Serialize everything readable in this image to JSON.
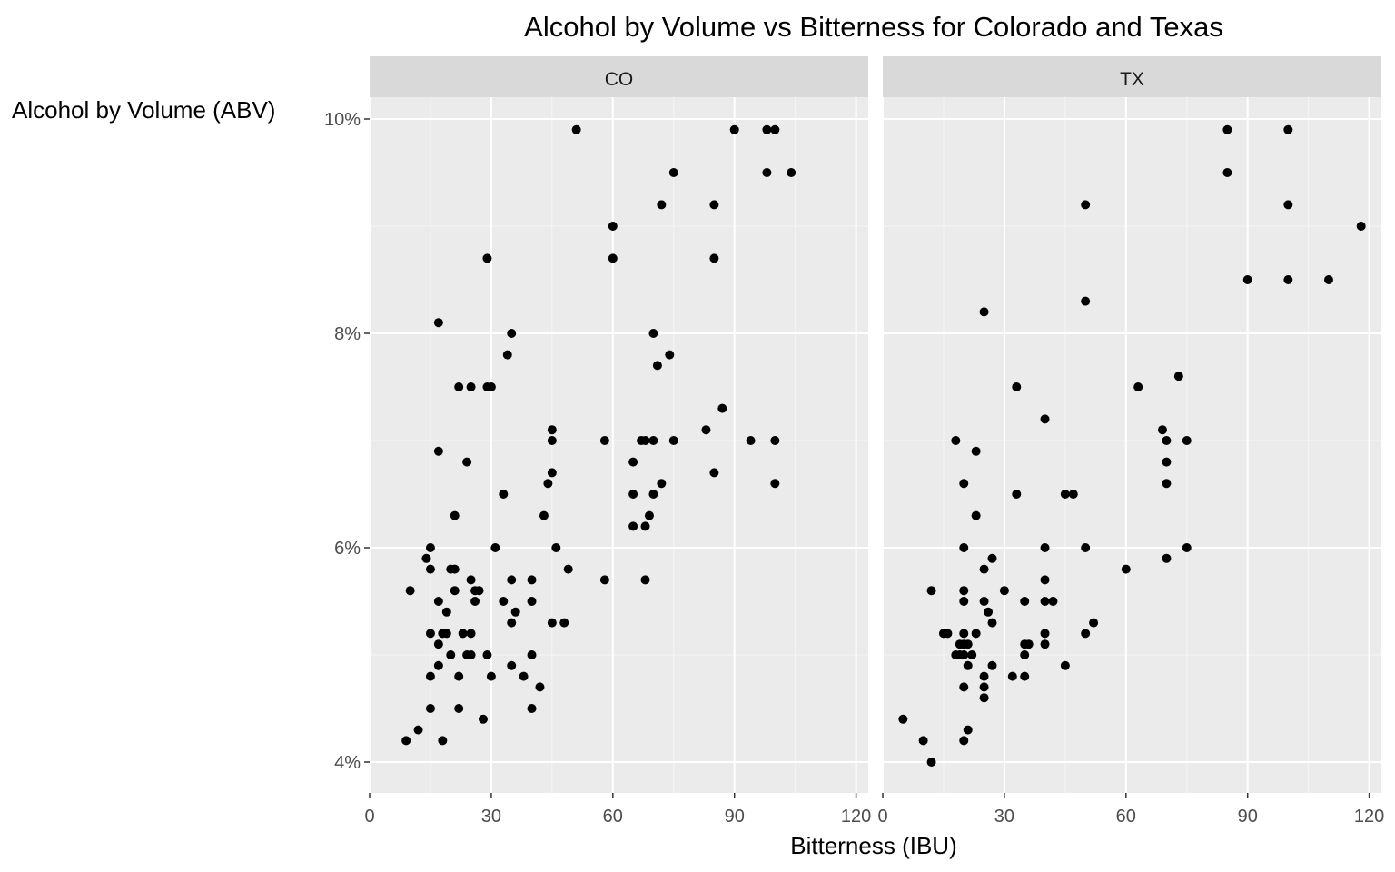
{
  "chart_data": {
    "type": "scatter",
    "title": "Alcohol by Volume vs Bitterness for Colorado and Texas",
    "xlabel": "Bitterness (IBU)",
    "ylabel": "Alcohol by Volume (ABV)",
    "xlim": [
      0,
      123
    ],
    "ylim": [
      3.75,
      10.3
    ],
    "x_ticks": [
      0,
      30,
      60,
      90,
      120
    ],
    "x_tick_labels": [
      "0",
      "30",
      "60",
      "90",
      "120"
    ],
    "y_ticks": [
      4,
      6,
      8,
      10
    ],
    "y_tick_labels": [
      "4%",
      "6%",
      "8%",
      "10%"
    ],
    "grid": true,
    "facets": [
      {
        "label": "CO",
        "points": [
          [
            9,
            4.2
          ],
          [
            12,
            4.3
          ],
          [
            18,
            4.2
          ],
          [
            15,
            4.5
          ],
          [
            22,
            4.5
          ],
          [
            28,
            4.4
          ],
          [
            40,
            4.5
          ],
          [
            15,
            4.8
          ],
          [
            17,
            4.9
          ],
          [
            22,
            4.8
          ],
          [
            30,
            4.8
          ],
          [
            35,
            4.9
          ],
          [
            38,
            4.8
          ],
          [
            42,
            4.7
          ],
          [
            20,
            5.0
          ],
          [
            24,
            5.0
          ],
          [
            25,
            5.0
          ],
          [
            29,
            5.0
          ],
          [
            40,
            5.0
          ],
          [
            17,
            5.1
          ],
          [
            15,
            5.2
          ],
          [
            18,
            5.2
          ],
          [
            19,
            5.2
          ],
          [
            23,
            5.2
          ],
          [
            25,
            5.2
          ],
          [
            35,
            5.3
          ],
          [
            45,
            5.3
          ],
          [
            48,
            5.3
          ],
          [
            19,
            5.4
          ],
          [
            36,
            5.4
          ],
          [
            10,
            5.6
          ],
          [
            17,
            5.5
          ],
          [
            26,
            5.5
          ],
          [
            33,
            5.5
          ],
          [
            40,
            5.5
          ],
          [
            21,
            5.6
          ],
          [
            26,
            5.6
          ],
          [
            27,
            5.6
          ],
          [
            25,
            5.7
          ],
          [
            35,
            5.7
          ],
          [
            40,
            5.7
          ],
          [
            58,
            5.7
          ],
          [
            68,
            5.7
          ],
          [
            15,
            5.8
          ],
          [
            20,
            5.8
          ],
          [
            21,
            5.8
          ],
          [
            49,
            5.8
          ],
          [
            14,
            5.9
          ],
          [
            15,
            6.0
          ],
          [
            31,
            6.0
          ],
          [
            46,
            6.0
          ],
          [
            21,
            6.3
          ],
          [
            43,
            6.3
          ],
          [
            65,
            6.2
          ],
          [
            68,
            6.2
          ],
          [
            69,
            6.3
          ],
          [
            33,
            6.5
          ],
          [
            44,
            6.6
          ],
          [
            45,
            6.7
          ],
          [
            65,
            6.5
          ],
          [
            65,
            6.8
          ],
          [
            70,
            6.5
          ],
          [
            72,
            6.6
          ],
          [
            85,
            6.7
          ],
          [
            100,
            6.6
          ],
          [
            17,
            6.9
          ],
          [
            24,
            6.8
          ],
          [
            45,
            7.0
          ],
          [
            45,
            7.1
          ],
          [
            58,
            7.0
          ],
          [
            67,
            7.0
          ],
          [
            68,
            7.0
          ],
          [
            70,
            7.0
          ],
          [
            75,
            7.0
          ],
          [
            83,
            7.1
          ],
          [
            87,
            7.3
          ],
          [
            94,
            7.0
          ],
          [
            100,
            7.0
          ],
          [
            22,
            7.5
          ],
          [
            25,
            7.5
          ],
          [
            29,
            7.5
          ],
          [
            30,
            7.5
          ],
          [
            34,
            7.8
          ],
          [
            35,
            8.0
          ],
          [
            70,
            8.0
          ],
          [
            71,
            7.7
          ],
          [
            74,
            7.8
          ],
          [
            17,
            8.1
          ],
          [
            29,
            8.7
          ],
          [
            60,
            8.7
          ],
          [
            85,
            8.7
          ],
          [
            60,
            9.0
          ],
          [
            72,
            9.2
          ],
          [
            85,
            9.2
          ],
          [
            75,
            9.5
          ],
          [
            98,
            9.5
          ],
          [
            104,
            9.5
          ],
          [
            51,
            9.9
          ],
          [
            90,
            9.9
          ],
          [
            98,
            9.9
          ],
          [
            100,
            9.9
          ]
        ]
      },
      {
        "label": "TX",
        "points": [
          [
            5,
            4.4
          ],
          [
            10,
            4.2
          ],
          [
            12,
            4.0
          ],
          [
            20,
            4.2
          ],
          [
            21,
            4.3
          ],
          [
            20,
            4.7
          ],
          [
            25,
            4.6
          ],
          [
            25,
            4.7
          ],
          [
            21,
            4.9
          ],
          [
            25,
            4.8
          ],
          [
            27,
            4.9
          ],
          [
            32,
            4.8
          ],
          [
            35,
            4.8
          ],
          [
            45,
            4.9
          ],
          [
            18,
            5.0
          ],
          [
            19,
            5.0
          ],
          [
            20,
            5.0
          ],
          [
            22,
            5.0
          ],
          [
            35,
            5.0
          ],
          [
            19,
            5.1
          ],
          [
            20,
            5.1
          ],
          [
            21,
            5.1
          ],
          [
            35,
            5.1
          ],
          [
            36,
            5.1
          ],
          [
            40,
            5.1
          ],
          [
            15,
            5.2
          ],
          [
            16,
            5.2
          ],
          [
            20,
            5.2
          ],
          [
            23,
            5.2
          ],
          [
            40,
            5.2
          ],
          [
            50,
            5.2
          ],
          [
            27,
            5.3
          ],
          [
            52,
            5.3
          ],
          [
            26,
            5.4
          ],
          [
            12,
            5.6
          ],
          [
            20,
            5.5
          ],
          [
            20,
            5.6
          ],
          [
            25,
            5.5
          ],
          [
            30,
            5.6
          ],
          [
            35,
            5.5
          ],
          [
            40,
            5.5
          ],
          [
            42,
            5.5
          ],
          [
            40,
            5.7
          ],
          [
            25,
            5.8
          ],
          [
            27,
            5.9
          ],
          [
            60,
            5.8
          ],
          [
            70,
            5.9
          ],
          [
            20,
            6.0
          ],
          [
            40,
            6.0
          ],
          [
            50,
            6.0
          ],
          [
            75,
            6.0
          ],
          [
            23,
            6.3
          ],
          [
            20,
            6.6
          ],
          [
            33,
            6.5
          ],
          [
            45,
            6.5
          ],
          [
            47,
            6.5
          ],
          [
            70,
            6.6
          ],
          [
            18,
            7.0
          ],
          [
            23,
            6.9
          ],
          [
            40,
            7.2
          ],
          [
            69,
            7.1
          ],
          [
            70,
            7.0
          ],
          [
            70,
            6.8
          ],
          [
            75,
            7.0
          ],
          [
            33,
            7.5
          ],
          [
            63,
            7.5
          ],
          [
            73,
            7.6
          ],
          [
            25,
            8.2
          ],
          [
            50,
            8.3
          ],
          [
            90,
            8.5
          ],
          [
            100,
            8.5
          ],
          [
            110,
            8.5
          ],
          [
            118,
            9.0
          ],
          [
            50,
            9.2
          ],
          [
            100,
            9.2
          ],
          [
            85,
            9.5
          ],
          [
            85,
            9.9
          ],
          [
            100,
            9.9
          ]
        ]
      }
    ]
  }
}
